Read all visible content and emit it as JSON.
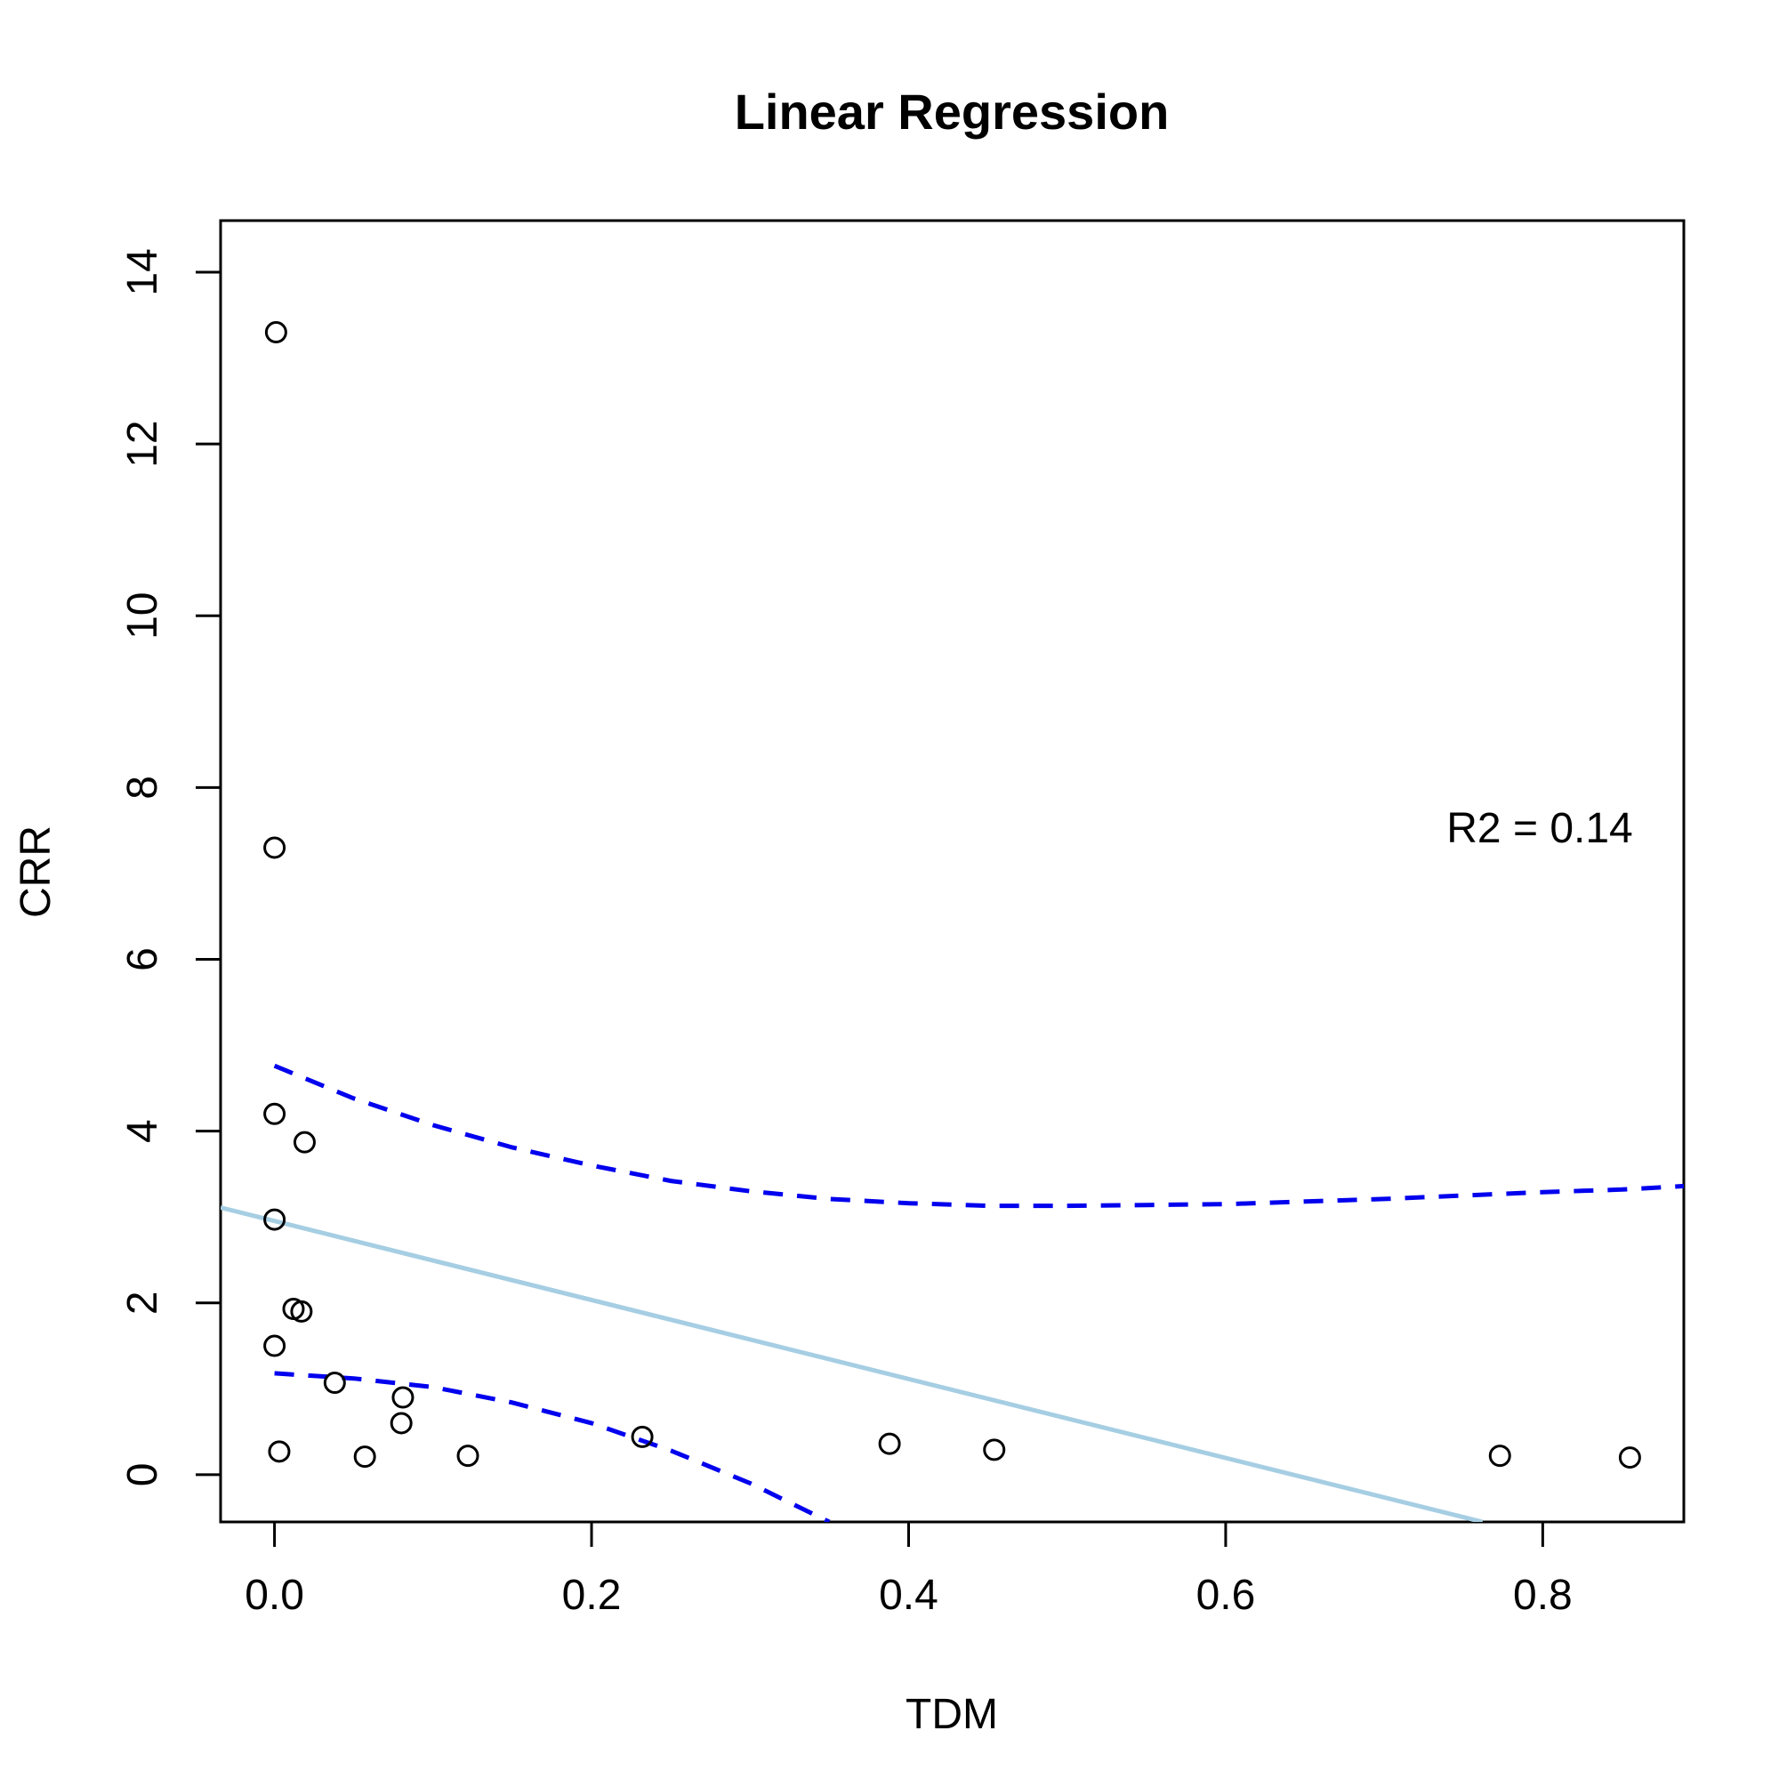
{
  "chart_data": {
    "type": "scatter",
    "title": "Linear Regression",
    "xlabel": "TDM",
    "ylabel": "CRR",
    "xlim": [
      -0.034,
      0.889
    ],
    "ylim": [
      -0.55,
      14.6
    ],
    "x_ticks": [
      0.0,
      0.2,
      0.4,
      0.6,
      0.8
    ],
    "x_tick_labels": [
      "0.0",
      "0.2",
      "0.4",
      "0.6",
      "0.8"
    ],
    "y_ticks": [
      0,
      2,
      4,
      6,
      8,
      10,
      12,
      14
    ],
    "y_tick_labels": [
      "0",
      "2",
      "4",
      "6",
      "8",
      "10",
      "12",
      "14"
    ],
    "grid": false,
    "points": [
      {
        "x": 0.001,
        "y": 13.3
      },
      {
        "x": 0.0,
        "y": 7.3
      },
      {
        "x": 0.0,
        "y": 4.2
      },
      {
        "x": 0.019,
        "y": 3.87
      },
      {
        "x": 0.0,
        "y": 2.97
      },
      {
        "x": 0.012,
        "y": 1.93
      },
      {
        "x": 0.017,
        "y": 1.9
      },
      {
        "x": 0.0,
        "y": 1.5
      },
      {
        "x": 0.038,
        "y": 1.07
      },
      {
        "x": 0.081,
        "y": 0.9
      },
      {
        "x": 0.08,
        "y": 0.6
      },
      {
        "x": 0.003,
        "y": 0.27
      },
      {
        "x": 0.057,
        "y": 0.21
      },
      {
        "x": 0.122,
        "y": 0.22
      },
      {
        "x": 0.232,
        "y": 0.44
      },
      {
        "x": 0.388,
        "y": 0.36
      },
      {
        "x": 0.454,
        "y": 0.29
      },
      {
        "x": 0.773,
        "y": 0.22
      },
      {
        "x": 0.855,
        "y": 0.2
      }
    ],
    "fit_line": {
      "color": "#a6cee3",
      "x": [
        -0.034,
        0.762
      ],
      "y": [
        3.11,
        -0.55
      ]
    },
    "confidence_band_upper": {
      "color": "#0000ee",
      "style": "dashed",
      "x": [
        0.0,
        0.05,
        0.1,
        0.15,
        0.2,
        0.25,
        0.3,
        0.35,
        0.4,
        0.45,
        0.5,
        0.55,
        0.6,
        0.65,
        0.7,
        0.75,
        0.8,
        0.85,
        0.889
      ],
      "y": [
        4.76,
        4.38,
        4.07,
        3.81,
        3.6,
        3.42,
        3.3,
        3.21,
        3.16,
        3.13,
        3.13,
        3.14,
        3.15,
        3.18,
        3.21,
        3.25,
        3.29,
        3.32,
        3.36
      ]
    },
    "confidence_band_lower": {
      "color": "#0000ee",
      "style": "dashed",
      "x": [
        0.0,
        0.05,
        0.1,
        0.15,
        0.2,
        0.25,
        0.3,
        0.35
      ],
      "y": [
        1.18,
        1.12,
        1.02,
        0.84,
        0.6,
        0.28,
        -0.1,
        -0.55
      ]
    },
    "annotation": {
      "text": "R2 = 0.14",
      "x": 0.8,
      "y": 7.5
    }
  }
}
